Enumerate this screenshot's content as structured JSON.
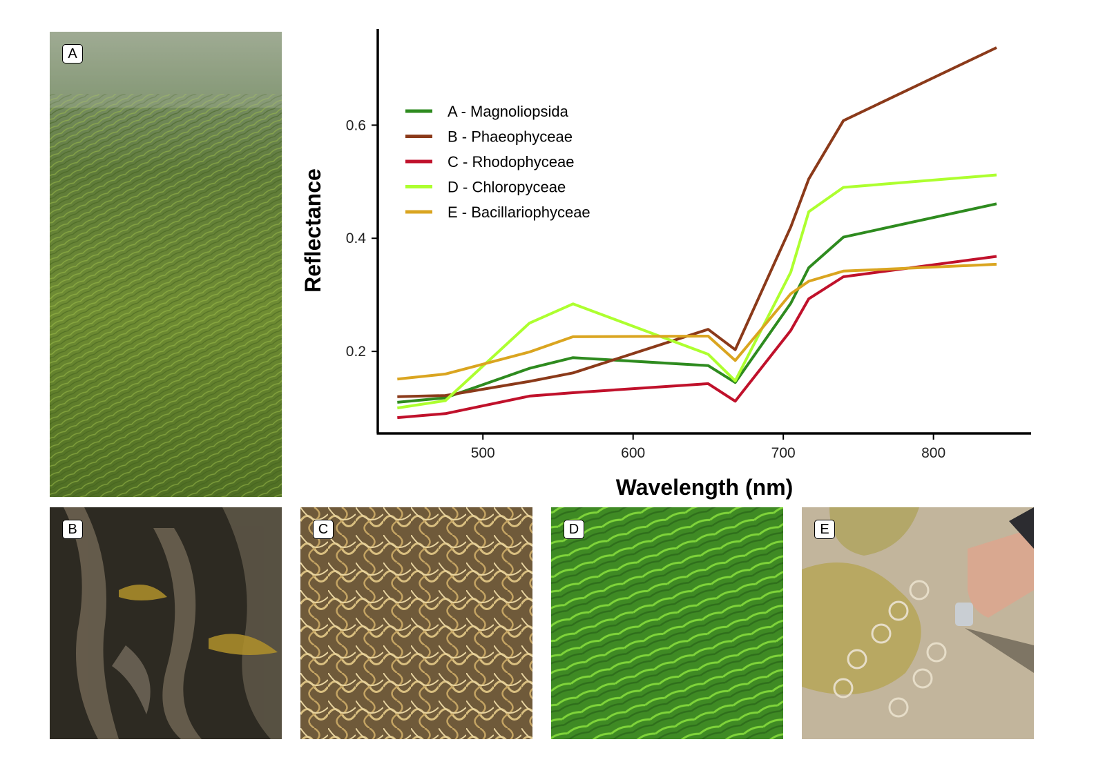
{
  "panels": [
    {
      "label": "A",
      "subject": "seagrass meadow"
    },
    {
      "label": "B",
      "subject": "brown wrack seaweed"
    },
    {
      "label": "C",
      "subject": "tangled red algae filaments"
    },
    {
      "label": "D",
      "subject": "green algae mat"
    },
    {
      "label": "E",
      "subject": "diatom biofilm on sand"
    }
  ],
  "chart_data": {
    "type": "line",
    "title": "",
    "xlabel": "Wavelength (nm)",
    "ylabel": "Reflectance",
    "xlim": [
      430,
      865
    ],
    "ylim": [
      0.055,
      0.77
    ],
    "x_ticks": [
      500,
      600,
      700,
      800
    ],
    "y_ticks": [
      0.2,
      0.4,
      0.6
    ],
    "x_tick_labels": [
      "500",
      "600",
      "700",
      "800"
    ],
    "y_tick_labels": [
      "0.2",
      "0.4",
      "0.6"
    ],
    "grid": false,
    "legend_position": "top-left",
    "x": [
      443,
      475,
      531,
      560,
      650,
      668,
      705,
      717,
      740,
      842
    ],
    "series": [
      {
        "name": "A - Magnoliopsida",
        "color": "#2e8b1f",
        "values": [
          0.11,
          0.118,
          0.17,
          0.189,
          0.175,
          0.145,
          0.285,
          0.348,
          0.402,
          0.461
        ]
      },
      {
        "name": "B - Phaeophyceae",
        "color": "#8b3a1a",
        "values": [
          0.12,
          0.122,
          0.147,
          0.162,
          0.239,
          0.203,
          0.42,
          0.505,
          0.608,
          0.737
        ]
      },
      {
        "name": "C - Rhodophyceae",
        "color": "#c0112b",
        "values": [
          0.083,
          0.09,
          0.121,
          0.127,
          0.143,
          0.112,
          0.237,
          0.293,
          0.332,
          0.368
        ]
      },
      {
        "name": "D - Chloropyceae",
        "color": "#adff2f",
        "values": [
          0.1,
          0.113,
          0.25,
          0.284,
          0.195,
          0.148,
          0.34,
          0.447,
          0.49,
          0.512
        ]
      },
      {
        "name": "E - Bacillariophyceae",
        "color": "#daa520",
        "values": [
          0.151,
          0.16,
          0.199,
          0.226,
          0.227,
          0.184,
          0.302,
          0.324,
          0.342,
          0.354
        ]
      }
    ]
  }
}
